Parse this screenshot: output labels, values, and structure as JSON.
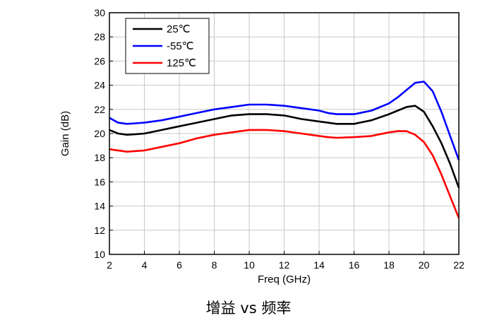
{
  "caption": "增益 vs 频率",
  "chart_data": {
    "type": "line",
    "xlabel": "Freq (GHz)",
    "ylabel": "Gain (dB)",
    "xlim": [
      2,
      22
    ],
    "ylim": [
      10,
      30
    ],
    "xticks": [
      2,
      4,
      6,
      8,
      10,
      12,
      14,
      16,
      18,
      20,
      22
    ],
    "yticks": [
      10,
      12,
      14,
      16,
      18,
      20,
      22,
      24,
      26,
      28,
      30
    ],
    "grid": true,
    "legend_position": "top-left",
    "series": [
      {
        "name": "25℃",
        "color": "#000000",
        "x": [
          2,
          2.5,
          3,
          3.5,
          4,
          5,
          6,
          7,
          8,
          9,
          10,
          11,
          12,
          13,
          14,
          14.5,
          15,
          16,
          17,
          18,
          18.5,
          19,
          19.5,
          20,
          20.5,
          21,
          21.5,
          22
        ],
        "y": [
          20.3,
          20.0,
          19.9,
          19.95,
          20.0,
          20.3,
          20.6,
          20.9,
          21.2,
          21.5,
          21.6,
          21.6,
          21.5,
          21.2,
          21.0,
          20.9,
          20.8,
          20.8,
          21.1,
          21.6,
          21.9,
          22.2,
          22.3,
          21.8,
          20.6,
          19.2,
          17.5,
          15.5
        ]
      },
      {
        "name": "-55℃",
        "color": "#0000ff",
        "x": [
          2,
          2.5,
          3,
          3.5,
          4,
          5,
          6,
          7,
          8,
          9,
          10,
          11,
          12,
          13,
          14,
          14.5,
          15,
          16,
          17,
          18,
          18.5,
          19,
          19.5,
          20,
          20.5,
          21,
          21.5,
          22
        ],
        "y": [
          21.3,
          20.9,
          20.8,
          20.85,
          20.9,
          21.1,
          21.4,
          21.7,
          22.0,
          22.2,
          22.4,
          22.4,
          22.3,
          22.1,
          21.9,
          21.7,
          21.6,
          21.6,
          21.9,
          22.5,
          23.0,
          23.6,
          24.2,
          24.3,
          23.5,
          21.8,
          19.8,
          17.8
        ]
      },
      {
        "name": "125℃",
        "color": "#ff0000",
        "x": [
          2,
          2.5,
          3,
          3.5,
          4,
          5,
          6,
          7,
          8,
          9,
          10,
          11,
          12,
          13,
          14,
          14.5,
          15,
          16,
          17,
          18,
          18.5,
          19,
          19.5,
          20,
          20.5,
          21,
          21.5,
          22
        ],
        "y": [
          18.7,
          18.6,
          18.5,
          18.55,
          18.6,
          18.9,
          19.2,
          19.6,
          19.9,
          20.1,
          20.3,
          20.3,
          20.2,
          20.0,
          19.8,
          19.7,
          19.65,
          19.7,
          19.8,
          20.1,
          20.2,
          20.2,
          19.9,
          19.3,
          18.2,
          16.6,
          14.8,
          13.0
        ]
      }
    ]
  }
}
